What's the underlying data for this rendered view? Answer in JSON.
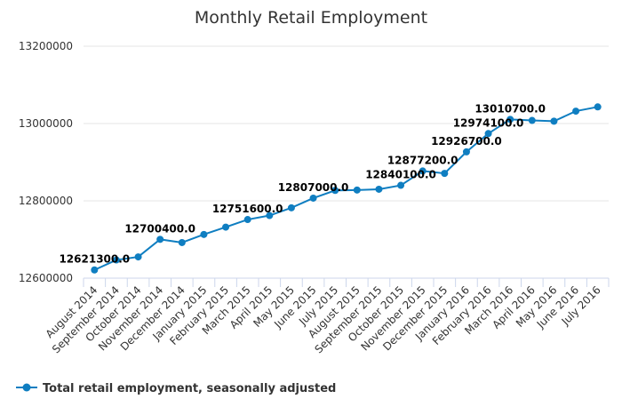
{
  "chart_data": {
    "type": "line",
    "title": "Monthly Retail Employment",
    "xlabel": "",
    "ylabel": "",
    "categories": [
      "August 2014",
      "September 2014",
      "October 2014",
      "November 2014",
      "December 2014",
      "January 2015",
      "February 2015",
      "March 2015",
      "April 2015",
      "May 2015",
      "June 2015",
      "July 2015",
      "August 2015",
      "September 2015",
      "October 2015",
      "November 2015",
      "December 2015",
      "January 2016",
      "February 2016",
      "March 2016",
      "April 2016",
      "May 2016",
      "June 2016",
      "July 2016"
    ],
    "yticks": [
      "12600000",
      "12800000",
      "13000000",
      "13200000"
    ],
    "ylim": [
      12600000,
      13200000
    ],
    "grid": true,
    "legend_position": "bottom-left",
    "series": [
      {
        "name": "Total retail employment, seasonally adjusted",
        "color": "#0f7ec1",
        "values": [
          12621300,
          12647000,
          12655000,
          12700400,
          12692000,
          12713000,
          12732000,
          12751600,
          12762000,
          12782000,
          12807000,
          12827000,
          12828000,
          12830000,
          12840100,
          12877200,
          12871000,
          12926700,
          12974100,
          13010700,
          13008000,
          13006000,
          13032000,
          13043000
        ]
      }
    ],
    "data_labels": [
      {
        "index": 0,
        "text": "12621300.0"
      },
      {
        "index": 3,
        "text": "12700400.0"
      },
      {
        "index": 7,
        "text": "12751600.0"
      },
      {
        "index": 10,
        "text": "12807000.0"
      },
      {
        "index": 14,
        "text": "12840100.0"
      },
      {
        "index": 15,
        "text": "12877200.0"
      },
      {
        "index": 17,
        "text": "12926700.0"
      },
      {
        "index": 18,
        "text": "12974100.0"
      },
      {
        "index": 19,
        "text": "13010700.0"
      }
    ]
  }
}
